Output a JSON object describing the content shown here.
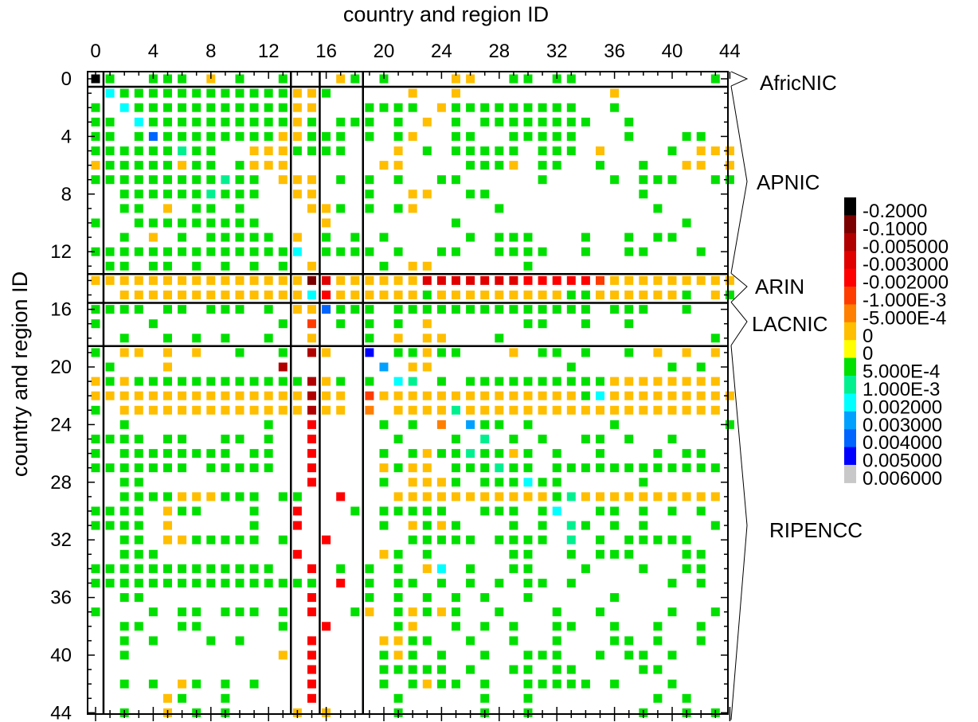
{
  "chart_data": {
    "type": "heatmap",
    "title": "",
    "xlabel": "country and region ID",
    "ylabel": "country and region ID",
    "xlim": [
      0,
      44
    ],
    "ylim": [
      0,
      44
    ],
    "x_tick_labels": [
      "0",
      "4",
      "8",
      "12",
      "16",
      "20",
      "24",
      "28",
      "32",
      "36",
      "40",
      "44"
    ],
    "y_tick_labels": [
      "0",
      "4",
      "8",
      "12",
      "16",
      "20",
      "24",
      "28",
      "32",
      "36",
      "40",
      "44"
    ],
    "regions": [
      {
        "name": "AfricNIC",
        "start": 0,
        "end": 0
      },
      {
        "name": "APNIC",
        "start": 1,
        "end": 13
      },
      {
        "name": "ARIN",
        "start": 14,
        "end": 15
      },
      {
        "name": "LACNIC",
        "start": 16,
        "end": 18
      },
      {
        "name": "RIPENCC",
        "start": 19,
        "end": 44
      }
    ],
    "colorbar": {
      "labels": [
        "-0.2000",
        "-0.1000",
        "-0.005000",
        "-0.003000",
        "-0.002000",
        "-1.000E-3",
        "-5.000E-4",
        "0",
        "0",
        "5.000E-4",
        "1.000E-3",
        "0.002000",
        "0.003000",
        "0.004000",
        "0.005000",
        "0.006000"
      ],
      "colors": [
        "#000000",
        "#7a0000",
        "#b00000",
        "#e00000",
        "#ff0000",
        "#ff3c00",
        "#ff7f00",
        "#ffbe00",
        "#ffff00",
        "#00e000",
        "#00f090",
        "#00ffff",
        "#00a0ff",
        "#0064ff",
        "#0000ff",
        "#c8c8c8"
      ]
    },
    "class_colors": [
      "#000000",
      "#7a0000",
      "#b00000",
      "#e00000",
      "#ff0000",
      "#ff3c00",
      "#ff7f00",
      "#ffbe00",
      "#ffff00",
      "#00e000",
      "#00f090",
      "#00ffff",
      "#00a0ff",
      "#0064ff",
      "#0000ff",
      "#c8c8c8"
    ],
    "rows": [
      "09..999.7.9..9...79.9....77..99.99.........9.",
      ".B999999999999779.....7..7..........7........",
      "9.B9999999999977...9999.7999999999..9........",
      "99.B999999999979.999.9.7.9.99999999..9.......",
      "99.9D9999999977999.9.97..99..99999...9...99..",
      "999999A99..7779999...7.9.99999.999.7....9.777",
      "799999799.9777......77....9997.99..9..9..77.7",
      "999999999A99.777.9.9.9..99.....9....9.999..99",
      "..999999A999..77...9..77..99..........9......",
      "..99.7.99.9....779.9.97.....9..........9.....",
      "9..999999999....7........9...............9...",
      "..9.7.9.99999.7.9.9.9.....9.999...9..9.99....",
      "99999999999999B.9999.9..99..9999..9..99...9..",
      ".99.99.9.9.9.9.7....9.77......9..............",
      "7777777777777771377777733333334444457777777777",
      "..7777777777777B47777779777777777997777779.797",
      "9999.99.999.9.77D999.99999999999999.999..9..",
      "9...9........9.5.9.9.9.7......99..9..9.......",
      "..9..9.9.9..9..7...9.7.77...9..............9.",
      "9.77.7.7..9..9.27..E.99799...7.99.9..9.7.7.7.",
      ".9...7.......2......C.77.........9......9.9...",
      "797999999999999279.9.BA.9.999999999977777777",
      "777777777777777277.5777777777777779B777777777",
      "9.7777777777777277.6.7777A777777777777777777",
      "..9.........9..4....9.9.6.C99.9.....9.......9",
      "9999.99..99.9..4.....9...9.A.9.9..99.9..9...",
      "9.99999999.99..4....9.9799A9979.9..9...9.99..",
      "9999999.99999..4....7977.999A99.999999999999",
      "..99...........4....9.7779.999B99.....9.......",
      "..9999777999.99..4...777777777779A7777777777.7",
      "9999.799...9..4...9.99999..999.9B..99.9.9.9.",
      "9999.7.....9..4.....9.7979...9.9.A9.9.9....9.",
      "..99.7799999.9..4.....99999.9999.A.9.99999..",
      "..999.........4.....79.9.....99..9.999...99.",
      "9999999999999..4.9.9.9.7B.9..99...9...9..99.",
      "9999999999999999.4.9.99.9.9.9.99.9......9.9..",
      "..99...........4...9.9.9.9.9..9.....9.......",
      "9...9.99.999.9.4..97.97979..9...9..9....9..9",
      "..99..99.....9..4....97..9.9.9..99..9..9..9..",
      "..9.9...9.9....4....7799..9..9..9...99.9..9..",
      "..9..........7.4....979.9..9..999..9.99.9..",
      "...............4....99999.9..99.99....99...",
      "..9.9.79.9.9...4....9.9799.9..99999.9...9...",
      ".....79..9.....4.....9.....9..9........9.9..",
      "..9..7.9.9....7.7....9.....9..9.......9..9.9.",
      ".9...79...9.9..4....7.......9...........9..9"
    ]
  }
}
